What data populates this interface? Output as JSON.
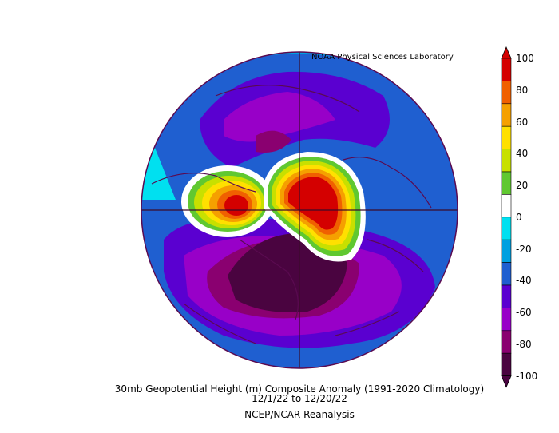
{
  "credit": "NOAA Physical Sciences Laboratory",
  "caption": {
    "line1": "30mb Geopotential Height (m) Composite Anomaly (1991-2020 Climatology)",
    "line2": "12/1/22  to 12/20/22",
    "line3": "NCEP/NCAR Reanalysis"
  },
  "colorbar": {
    "ticks": [
      "100",
      "80",
      "60",
      "40",
      "20",
      "0",
      "-20",
      "-40",
      "-60",
      "-80",
      "-100"
    ],
    "colors": [
      "#d40000",
      "#f06000",
      "#f5a000",
      "#ffe000",
      "#c8e000",
      "#60c830",
      "#ffffff",
      "#00e0f0",
      "#00a0e0",
      "#1f5fd0",
      "#5a00d0",
      "#9800c8",
      "#8a0070",
      "#4a0440"
    ]
  },
  "legend_colors": {
    "strong_positive": "#d40000",
    "positive": "#f06000",
    "weak_positive": "#ffe000",
    "neutral": "#ffffff",
    "weak_negative": "#00e0f0",
    "negative": "#5a00d0",
    "strong_negative": "#4a0440"
  }
}
